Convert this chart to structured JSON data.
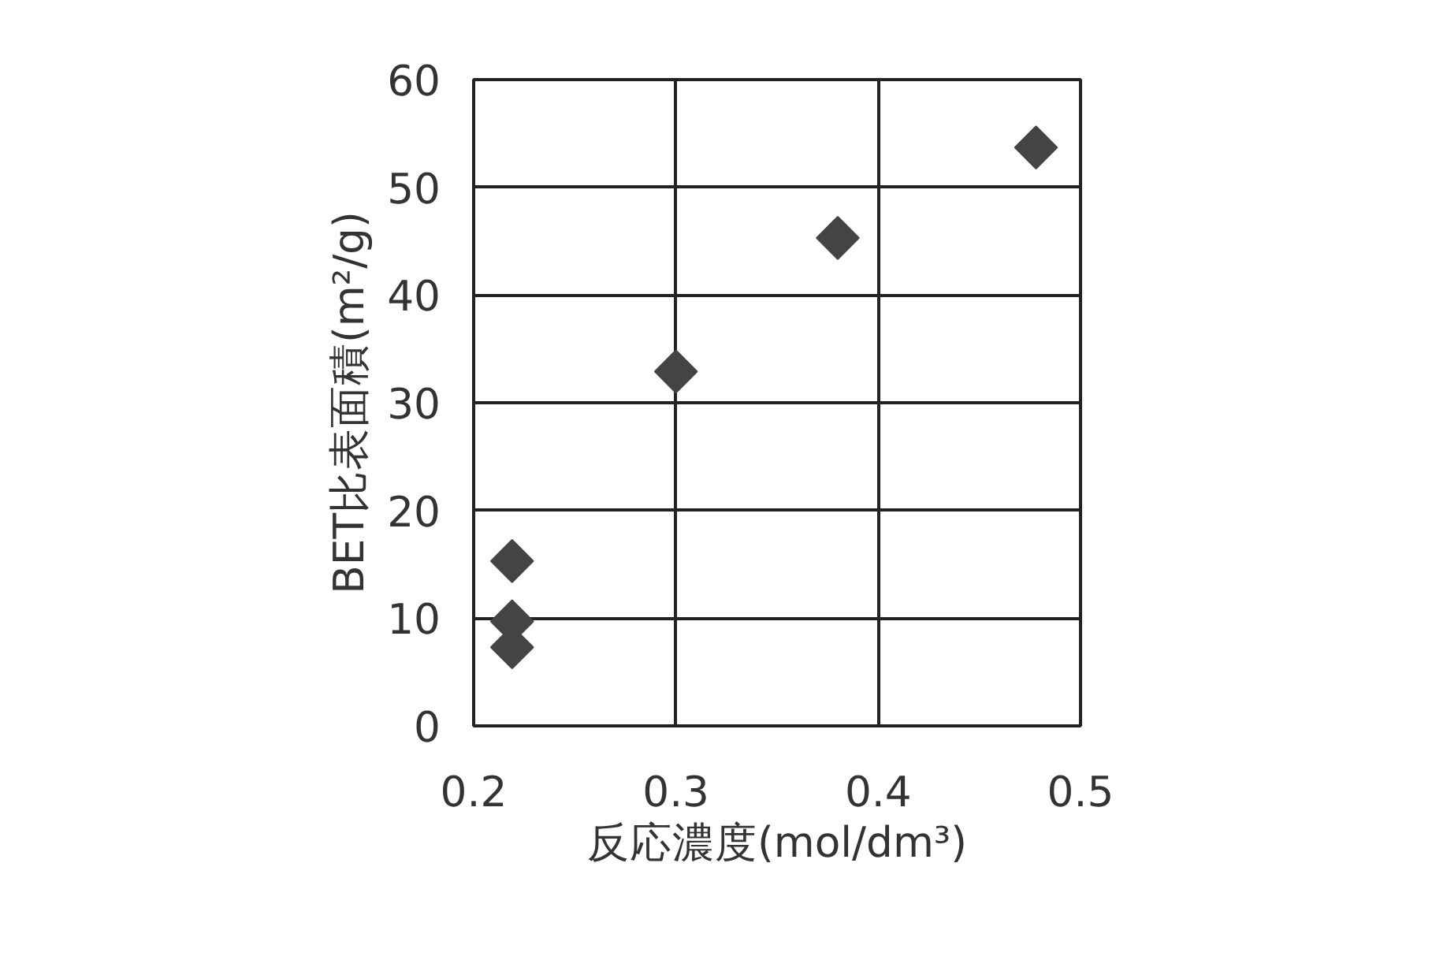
{
  "chart_data": {
    "type": "scatter",
    "xlabel": "反応濃度(mol/dm³)",
    "ylabel": "BET比表面積(m²/g)",
    "x": [
      0.219,
      0.219,
      0.219,
      0.3,
      0.38,
      0.478
    ],
    "series": [
      {
        "color": "#444444",
        "values": [
          15.3,
          9.7,
          7.3,
          32.9,
          45.3,
          53.7
        ]
      }
    ],
    "xlim": [
      0.2,
      0.5
    ],
    "ylim": [
      0,
      60
    ],
    "xticks": [
      0.2,
      0.3,
      0.4,
      0.5
    ],
    "yticks": [
      0,
      10,
      20,
      30,
      40,
      50,
      60
    ],
    "grid": true,
    "marker": "diamond"
  }
}
